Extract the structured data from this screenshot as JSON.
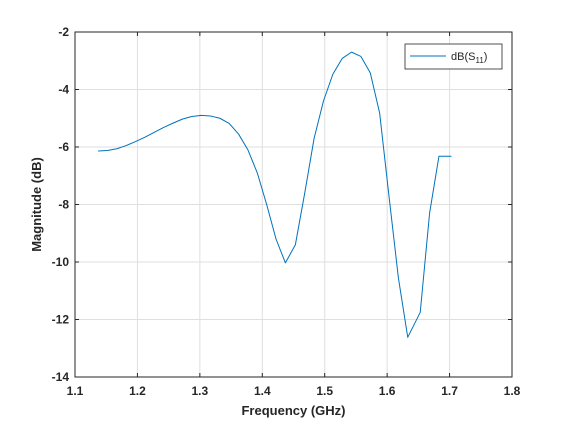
{
  "chart_data": {
    "type": "line",
    "xlabel": "Frequency (GHz)",
    "ylabel": "Magnitude (dB)",
    "xlim": [
      1.1,
      1.8
    ],
    "ylim": [
      -14,
      -2
    ],
    "xticks": [
      "1.1",
      "1.2",
      "1.3",
      "1.4",
      "1.5",
      "1.6",
      "1.7",
      "1.8"
    ],
    "yticks": [
      "-2",
      "-4",
      "-6",
      "-8",
      "-10",
      "-12",
      "-14"
    ],
    "grid": true,
    "legend_position": "top-right",
    "series": [
      {
        "name": "dB(S11)",
        "name_parts": {
          "prefix": "dB(S",
          "subscript": "11",
          "suffix": ")"
        },
        "color": "#0072BD",
        "x": [
          1.137,
          1.152,
          1.167,
          1.182,
          1.197,
          1.212,
          1.227,
          1.242,
          1.257,
          1.272,
          1.287,
          1.302,
          1.317,
          1.332,
          1.347,
          1.362,
          1.377,
          1.392,
          1.407,
          1.422,
          1.437,
          1.453,
          1.468,
          1.483,
          1.498,
          1.513,
          1.528,
          1.543,
          1.558,
          1.573,
          1.588,
          1.603,
          1.618,
          1.633,
          1.653,
          1.668,
          1.683,
          1.703
        ],
        "y": [
          -6.14,
          -6.12,
          -6.06,
          -5.95,
          -5.81,
          -5.66,
          -5.49,
          -5.32,
          -5.17,
          -5.03,
          -4.94,
          -4.9,
          -4.92,
          -5.0,
          -5.18,
          -5.55,
          -6.1,
          -6.9,
          -8.0,
          -9.2,
          -10.03,
          -9.4,
          -7.6,
          -5.7,
          -4.4,
          -3.47,
          -2.92,
          -2.7,
          -2.85,
          -3.42,
          -4.82,
          -7.72,
          -10.55,
          -12.62,
          -11.75,
          -8.3,
          -6.32,
          -6.32
        ]
      }
    ]
  }
}
